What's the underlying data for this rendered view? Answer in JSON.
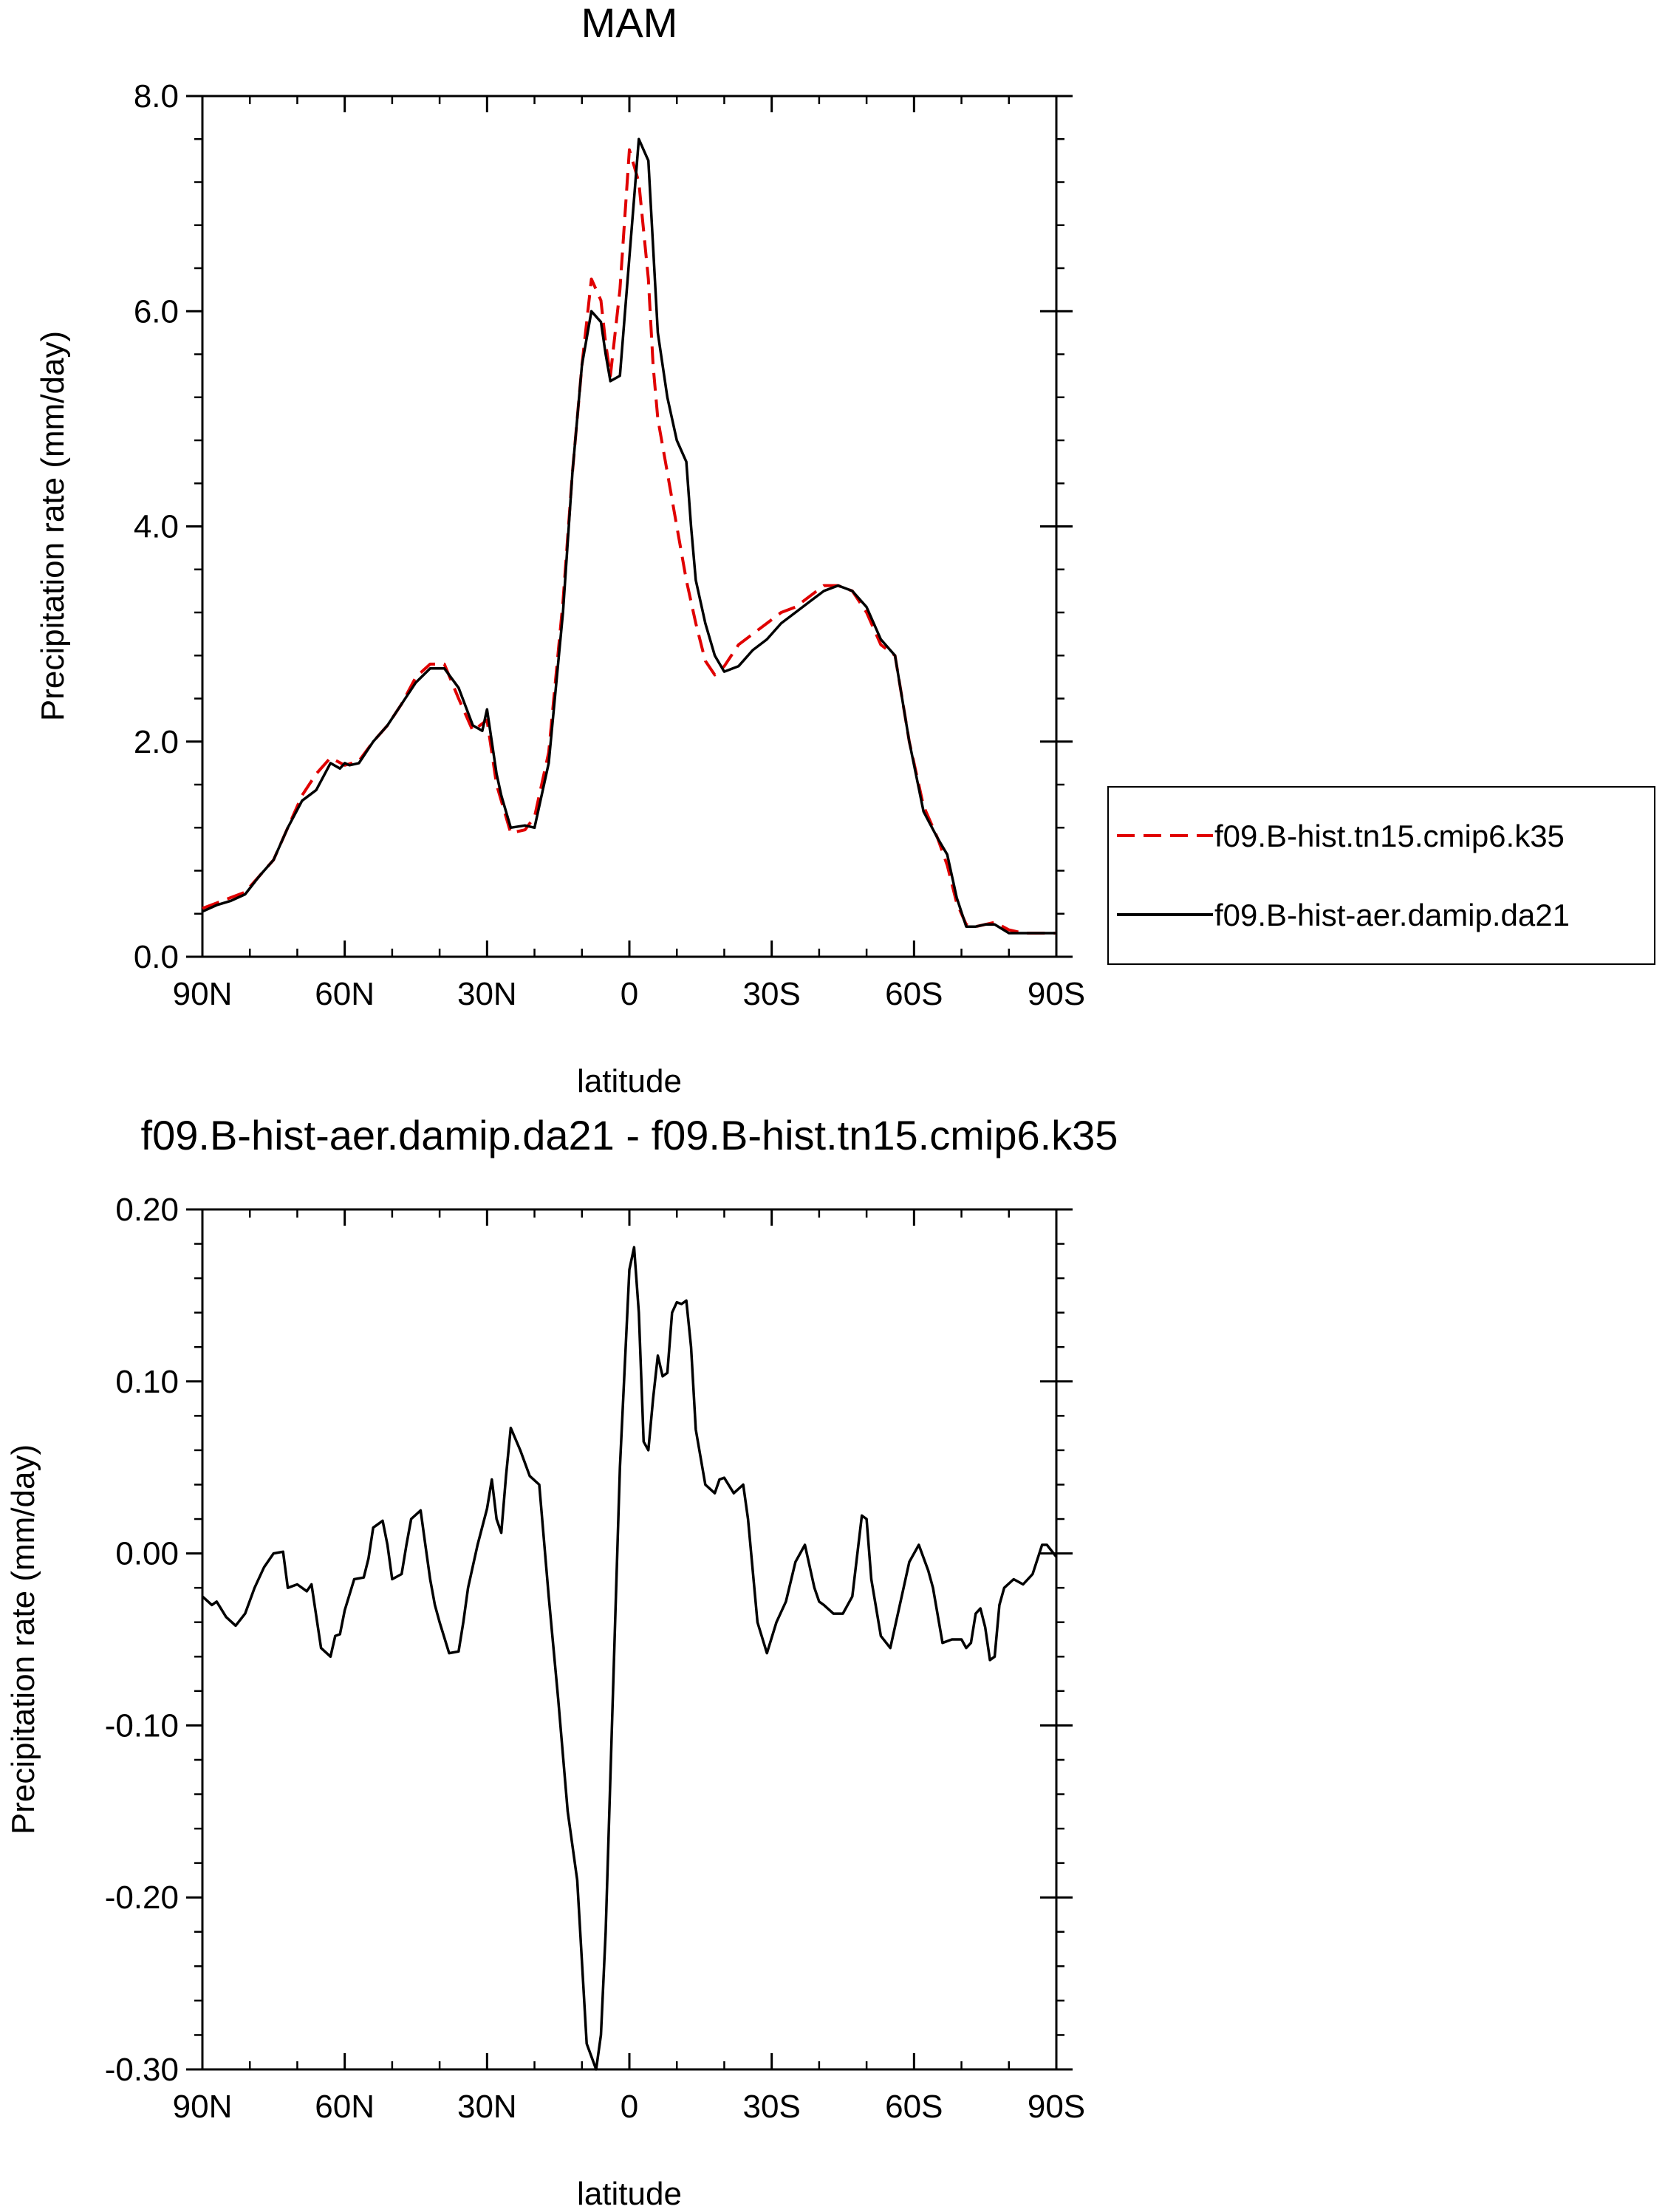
{
  "figure": {
    "top_title": "MAM",
    "bottom_title": "f09.B-hist-aer.damip.da21 - f09.B-hist.tn15.cmip6.k35"
  },
  "chart_data": [
    {
      "type": "line",
      "title": "MAM",
      "xlabel": "latitude",
      "ylabel": "Precipitation rate (mm/day)",
      "xlim": [
        -90,
        90
      ],
      "ylim": [
        0,
        8
      ],
      "xticks": [
        -90,
        -60,
        -30,
        0,
        30,
        60,
        90
      ],
      "xtick_labels": [
        "90N",
        "60N",
        "30N",
        "0",
        "30S",
        "60S",
        "90S"
      ],
      "yticks": [
        0,
        2,
        4,
        6,
        8
      ],
      "ytick_labels": [
        "0.0",
        "2.0",
        "4.0",
        "6.0",
        "8.0"
      ],
      "legend_position": "right",
      "grid": false,
      "series": [
        {
          "name": "f09.B-hist.tn15.cmip6.k35",
          "color": "#e00000",
          "dash": true,
          "x": [
            -90,
            -87,
            -84,
            -81,
            -78,
            -75,
            -72,
            -69,
            -66,
            -63,
            -60,
            -57,
            -54,
            -51,
            -48,
            -45,
            -42,
            -39,
            -36,
            -33,
            -30,
            -28,
            -27,
            -25,
            -22,
            -20,
            -17,
            -14,
            -12,
            -10,
            -8,
            -6,
            -5,
            -4,
            -2,
            0,
            2,
            4,
            5,
            6,
            8,
            10,
            12,
            14,
            16,
            18,
            20,
            23,
            26,
            29,
            32,
            35,
            38,
            41,
            44,
            47,
            50,
            53,
            56,
            59,
            62,
            65,
            67,
            69,
            71,
            73,
            75,
            77,
            80,
            83,
            86,
            88,
            90
          ],
          "values": [
            0.45,
            0.5,
            0.55,
            0.6,
            0.75,
            0.9,
            1.2,
            1.5,
            1.7,
            1.85,
            1.78,
            1.82,
            2.0,
            2.15,
            2.35,
            2.6,
            2.72,
            2.72,
            2.4,
            2.1,
            2.2,
            1.6,
            1.45,
            1.15,
            1.18,
            1.3,
            1.9,
            3.3,
            4.5,
            5.5,
            6.3,
            6.1,
            5.7,
            5.4,
            6.2,
            7.5,
            7.2,
            6.3,
            5.5,
            5.0,
            4.5,
            4.0,
            3.5,
            3.1,
            2.75,
            2.62,
            2.7,
            2.9,
            3.0,
            3.1,
            3.2,
            3.25,
            3.35,
            3.45,
            3.45,
            3.4,
            3.2,
            2.9,
            2.8,
            2.0,
            1.4,
            1.1,
            0.85,
            0.5,
            0.3,
            0.28,
            0.3,
            0.32,
            0.25,
            0.22,
            0.22,
            0.22,
            0.22
          ]
        },
        {
          "name": "f09.B-hist-aer.damip.da21",
          "color": "#000000",
          "dash": false,
          "x": [
            -90,
            -87,
            -84,
            -81,
            -78,
            -75,
            -72,
            -69,
            -66,
            -63,
            -61,
            -60,
            -59,
            -57,
            -54,
            -51,
            -48,
            -45,
            -42,
            -39,
            -36,
            -33,
            -31,
            -30,
            -28,
            -27,
            -25,
            -22,
            -20,
            -17,
            -14,
            -12,
            -10,
            -8,
            -6,
            -5,
            -4,
            -2,
            0,
            2,
            4,
            5,
            6,
            8,
            10,
            12,
            13,
            14,
            16,
            18,
            20,
            23,
            26,
            29,
            32,
            35,
            38,
            41,
            44,
            47,
            50,
            53,
            56,
            59,
            62,
            65,
            67,
            69,
            71,
            73,
            75,
            77,
            80,
            83,
            86,
            88,
            90
          ],
          "values": [
            0.42,
            0.48,
            0.52,
            0.58,
            0.75,
            0.9,
            1.2,
            1.45,
            1.55,
            1.8,
            1.75,
            1.8,
            1.78,
            1.8,
            2.0,
            2.15,
            2.35,
            2.55,
            2.68,
            2.68,
            2.5,
            2.15,
            2.1,
            2.3,
            1.7,
            1.5,
            1.2,
            1.22,
            1.2,
            1.8,
            3.2,
            4.5,
            5.5,
            6.0,
            5.9,
            5.6,
            5.35,
            5.4,
            6.5,
            7.6,
            7.4,
            6.6,
            5.8,
            5.2,
            4.8,
            4.6,
            4.0,
            3.5,
            3.1,
            2.8,
            2.65,
            2.7,
            2.85,
            2.95,
            3.1,
            3.2,
            3.3,
            3.4,
            3.45,
            3.4,
            3.25,
            2.95,
            2.8,
            2.0,
            1.35,
            1.1,
            0.95,
            0.55,
            0.28,
            0.28,
            0.3,
            0.3,
            0.22,
            0.22,
            0.22,
            0.22,
            0.22
          ]
        }
      ]
    },
    {
      "type": "line",
      "title": "f09.B-hist-aer.damip.da21 - f09.B-hist.tn15.cmip6.k35",
      "xlabel": "latitude",
      "ylabel": "Precipitation rate (mm/day)",
      "xlim": [
        -90,
        90
      ],
      "ylim": [
        -0.3,
        0.2
      ],
      "xticks": [
        -90,
        -60,
        -30,
        0,
        30,
        60,
        90
      ],
      "xtick_labels": [
        "90N",
        "60N",
        "30N",
        "0",
        "30S",
        "60S",
        "90S"
      ],
      "yticks": [
        -0.3,
        -0.2,
        -0.1,
        0,
        0.1,
        0.2
      ],
      "ytick_labels": [
        "-0.30",
        "-0.20",
        "-0.10",
        "0.00",
        "0.10",
        "0.20"
      ],
      "grid": false,
      "series": [
        {
          "color": "#000000",
          "dash": false,
          "x": [
            -90,
            -88,
            -87,
            -85,
            -83,
            -81,
            -79,
            -77,
            -75,
            -73,
            -72,
            -70,
            -68,
            -67,
            -65,
            -63,
            -62,
            -61,
            -60,
            -58,
            -56,
            -55,
            -54,
            -52,
            -51,
            -50,
            -48,
            -47,
            -46,
            -44,
            -43,
            -42,
            -41,
            -40,
            -38,
            -36,
            -35,
            -34,
            -32,
            -30,
            -29,
            -28,
            -27,
            -26,
            -25,
            -23,
            -21,
            -19,
            -17,
            -15,
            -13,
            -11,
            -9,
            -7,
            -6,
            -5,
            -4,
            -3,
            -2,
            0,
            1,
            2,
            3,
            4,
            5,
            6,
            7,
            8,
            9,
            10,
            11,
            12,
            13,
            14,
            16,
            18,
            19,
            20,
            22,
            24,
            25,
            27,
            29,
            31,
            33,
            35,
            37,
            39,
            40,
            41,
            43,
            45,
            47,
            49,
            50,
            51,
            53,
            55,
            57,
            59,
            61,
            63,
            64,
            66,
            68,
            70,
            71,
            72,
            73,
            74,
            75,
            76,
            77,
            78,
            79,
            81,
            83,
            85,
            87,
            88,
            90
          ],
          "values": [
            -0.025,
            -0.03,
            -0.028,
            -0.037,
            -0.042,
            -0.035,
            -0.02,
            -0.008,
            0.0,
            0.001,
            -0.02,
            -0.018,
            -0.022,
            -0.018,
            -0.055,
            -0.06,
            -0.048,
            -0.047,
            -0.033,
            -0.015,
            -0.014,
            -0.003,
            0.015,
            0.019,
            0.005,
            -0.015,
            -0.012,
            0.005,
            0.02,
            0.025,
            0.005,
            -0.015,
            -0.03,
            -0.04,
            -0.058,
            -0.057,
            -0.04,
            -0.02,
            0.005,
            0.026,
            0.043,
            0.02,
            0.012,
            0.045,
            0.073,
            0.06,
            0.045,
            0.04,
            -0.025,
            -0.085,
            -0.15,
            -0.19,
            -0.285,
            -0.3,
            -0.28,
            -0.22,
            -0.13,
            -0.04,
            0.05,
            0.165,
            0.178,
            0.14,
            0.065,
            0.06,
            0.09,
            0.115,
            0.103,
            0.105,
            0.14,
            0.146,
            0.145,
            0.147,
            0.12,
            0.072,
            0.04,
            0.035,
            0.043,
            0.044,
            0.035,
            0.04,
            0.02,
            -0.04,
            -0.058,
            -0.04,
            -0.028,
            -0.005,
            0.005,
            -0.02,
            -0.028,
            -0.03,
            -0.035,
            -0.035,
            -0.025,
            0.022,
            0.02,
            -0.015,
            -0.048,
            -0.055,
            -0.03,
            -0.005,
            0.005,
            -0.01,
            -0.02,
            -0.052,
            -0.05,
            -0.05,
            -0.055,
            -0.052,
            -0.035,
            -0.032,
            -0.043,
            -0.062,
            -0.06,
            -0.03,
            -0.02,
            -0.015,
            -0.018,
            -0.012,
            0.005,
            0.005,
            -0.002
          ]
        }
      ]
    }
  ]
}
